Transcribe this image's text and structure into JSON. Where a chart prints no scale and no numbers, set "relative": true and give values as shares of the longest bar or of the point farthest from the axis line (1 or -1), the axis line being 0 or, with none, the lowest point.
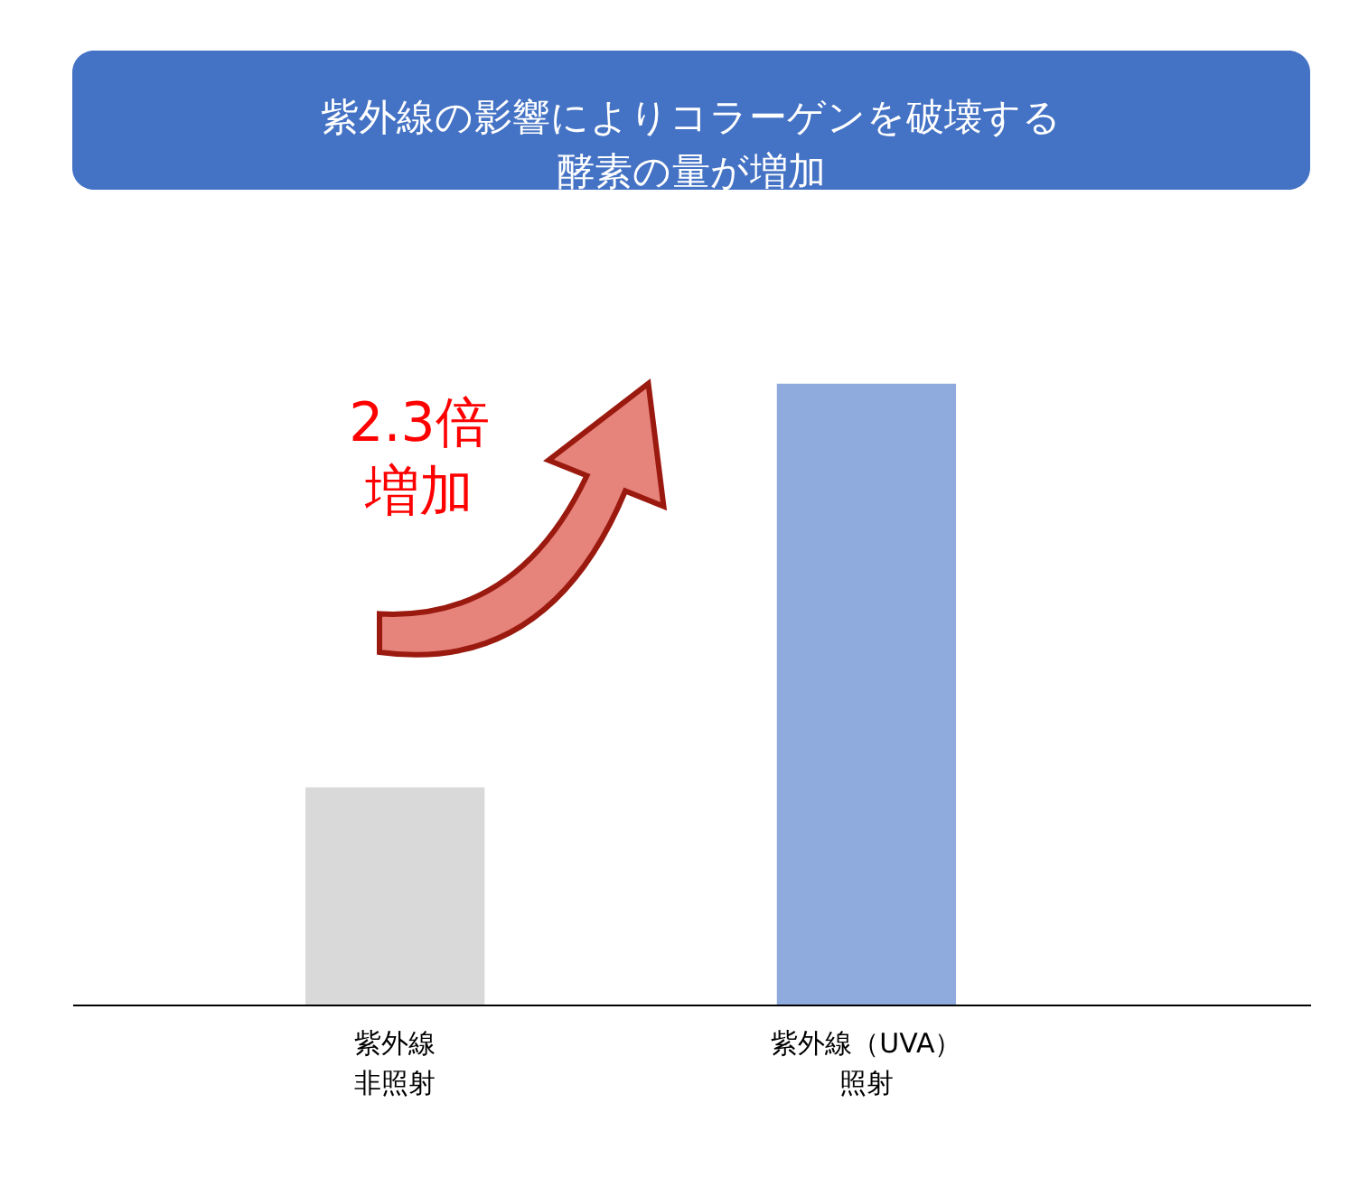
{
  "chart_data": {
    "type": "bar",
    "title": "紫外線の影響によりコラーゲンを破壊する酵素の量が増加",
    "categories": [
      "紫外線非照射",
      "紫外線（UVA）照射"
    ],
    "values": [
      0.35,
      1
    ],
    "colors": [
      "#d9d9d9",
      "#8faadc"
    ],
    "relative": true,
    "annotations": [
      "2.3倍増加"
    ]
  }
}
